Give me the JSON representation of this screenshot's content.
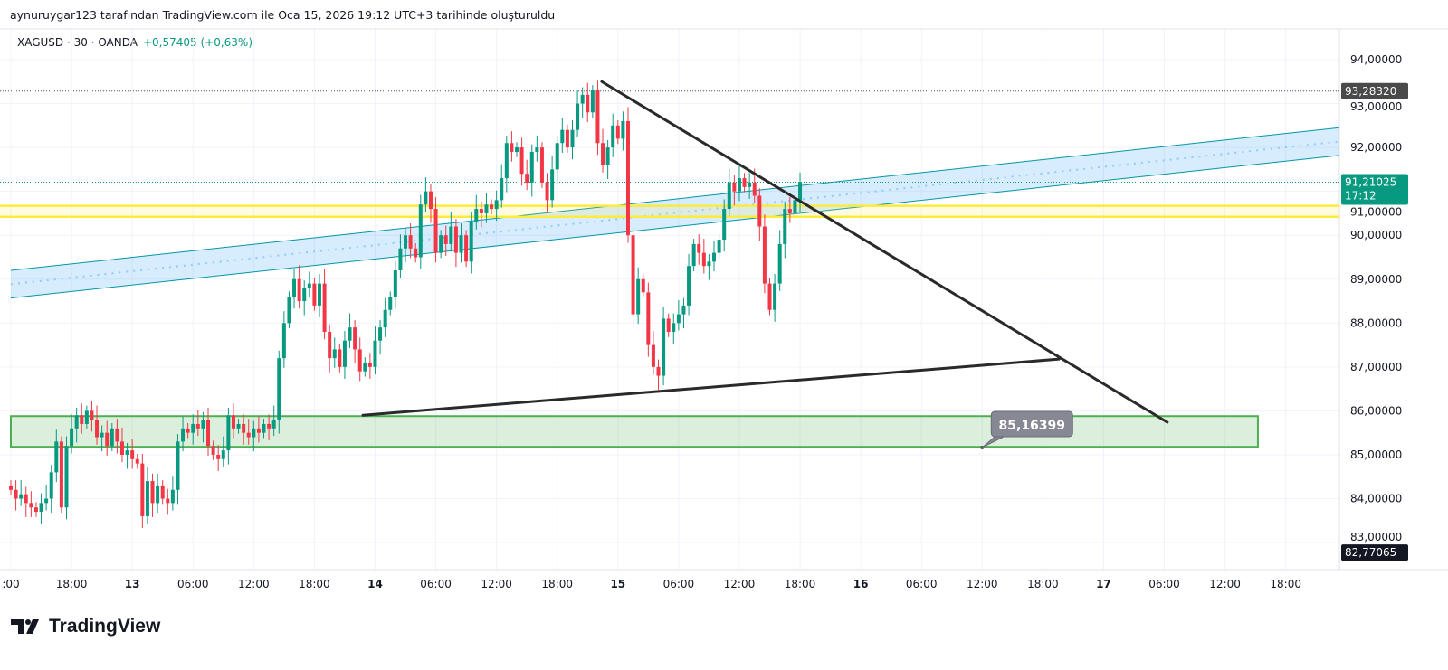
{
  "caption": "aynuruygar123 tarafından TradingView.com ile Oca 15, 2026 19:12 UTC+3 tarihinde oluşturuldu",
  "legend": {
    "symbol": "XAGUSD · 30 · OANDA",
    "change": "+0,57405 (+0,63%)"
  },
  "brand": "TradingView",
  "colors": {
    "up": "#089981",
    "down": "#f23645",
    "channel": "#2196f3",
    "yellow": "#ffeb3b",
    "zone": "#4caf50",
    "trend": "#2a2a2a"
  },
  "chart_data": {
    "type": "candlestick",
    "title": "XAGUSD · 30 · OANDA",
    "ylim": [
      82.5,
      94.5
    ],
    "y_ticks": [
      "94,00000",
      "93,00000",
      "92,00000",
      "91,00000",
      "90,00000",
      "89,00000",
      "88,00000",
      "87,00000",
      "86,00000",
      "85,00000",
      "84,00000",
      "83,00000"
    ],
    "y_tick_values": [
      94,
      93,
      92,
      91,
      90,
      89,
      88,
      87,
      86,
      85,
      84,
      83
    ],
    "x_ticks": [
      ":00",
      "18:00",
      "13",
      "06:00",
      "12:00",
      "18:00",
      "14",
      "06:00",
      "12:00",
      "18:00",
      "15",
      "06:00",
      "12:00",
      "18:00",
      "16",
      "06:00",
      "12:00",
      "18:00",
      "17",
      "06:00",
      "12:00",
      "18:00"
    ],
    "x_tick_every_bars": 12,
    "first_open": 84.3,
    "closes": [
      84.2,
      84.0,
      84.1,
      83.9,
      83.8,
      83.7,
      83.9,
      84.0,
      84.6,
      85.3,
      83.8,
      85.2,
      85.6,
      85.9,
      85.7,
      86.0,
      85.8,
      85.4,
      85.5,
      85.2,
      85.6,
      85.3,
      85.0,
      85.1,
      84.9,
      84.8,
      83.6,
      84.4,
      83.9,
      84.3,
      84.0,
      83.9,
      84.2,
      85.3,
      85.6,
      85.5,
      85.7,
      85.6,
      85.8,
      85.2,
      85.0,
      84.9,
      85.1,
      85.9,
      85.6,
      85.7,
      85.5,
      85.4,
      85.6,
      85.5,
      85.7,
      85.6,
      85.8,
      87.2,
      88.0,
      88.6,
      89.0,
      88.5,
      88.8,
      88.9,
      88.4,
      88.9,
      87.8,
      87.2,
      87.4,
      87.0,
      87.6,
      87.9,
      87.4,
      86.9,
      87.1,
      87.0,
      87.6,
      87.9,
      88.3,
      88.6,
      89.2,
      89.7,
      90.0,
      89.7,
      89.5,
      90.7,
      91.0,
      90.6,
      89.6,
      90.0,
      89.8,
      90.2,
      89.6,
      90.0,
      89.4,
      90.3,
      90.6,
      90.5,
      90.7,
      90.6,
      90.8,
      91.3,
      92.1,
      91.9,
      92.0,
      91.4,
      91.2,
      91.9,
      92.0,
      91.2,
      90.8,
      91.5,
      92.1,
      92.4,
      92.0,
      92.4,
      93.0,
      93.2,
      92.8,
      93.3,
      92.1,
      91.6,
      92.0,
      92.5,
      92.2,
      92.6,
      90.0,
      88.2,
      89.0,
      88.7,
      87.5,
      87.0,
      86.8,
      88.1,
      87.8,
      88.0,
      88.2,
      88.4,
      89.3,
      89.8,
      89.6,
      89.3,
      89.4,
      89.6,
      89.9,
      90.6,
      91.2,
      91.0,
      91.3,
      91.1,
      91.2,
      90.9,
      90.2,
      88.9,
      88.3,
      88.9,
      89.8,
      90.6,
      90.5,
      90.8,
      91.21025
    ],
    "last_price": {
      "value": "91,21025",
      "countdown": "17:12"
    },
    "high_marker": "93,28320",
    "low_marker": "82,77065",
    "high_marker_value": 93.2832,
    "last_price_value": 91.21025,
    "overlays": {
      "channel": {
        "start_bar": 0,
        "end_bar": 262.6,
        "upper": [
          89.2,
          92.45
        ],
        "lower": [
          88.57,
          91.82
        ]
      },
      "yellow_lines": [
        90.67,
        90.42
      ],
      "support_zone": {
        "start_bar": 0,
        "end_bar": 246.5,
        "top": 85.88,
        "bottom": 85.18
      },
      "down_trend": {
        "from": [
          116.8,
          93.5
        ],
        "to": [
          228.6,
          85.74
        ]
      },
      "up_trend": {
        "from": [
          69.6,
          85.9
        ],
        "to": [
          207.2,
          87.18
        ]
      },
      "callout": {
        "bar": 192,
        "price": 85.16399,
        "label": "85,16399"
      }
    }
  }
}
